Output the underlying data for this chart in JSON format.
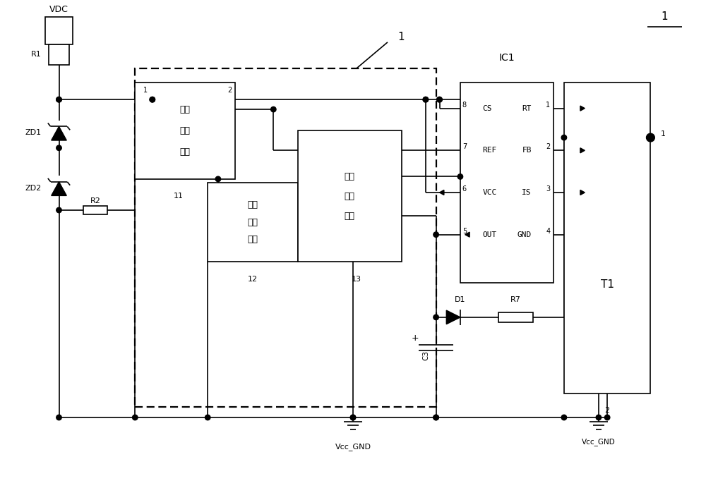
{
  "bg_color": "#ffffff",
  "figsize": [
    10.0,
    6.92
  ],
  "dpi": 100,
  "labels": {
    "VDC": "VDC",
    "R1": "R1",
    "R2": "R2",
    "R7": "R7",
    "ZD1": "ZD1",
    "ZD2": "ZD2",
    "D1": "D1",
    "C3": "C3",
    "IC1": "IC1",
    "T1": "T1",
    "mod1_l1": "电压",
    "mod1_l2": "检测",
    "mod1_l3": "模块",
    "mod2_l1": "延时",
    "mod2_l2": "保持",
    "mod2_l3": "模块",
    "mod3_l1": "开关",
    "mod3_l2": "控制",
    "mod3_l3": "模块",
    "gnd": "Vcc_GND",
    "ref1": "1"
  }
}
